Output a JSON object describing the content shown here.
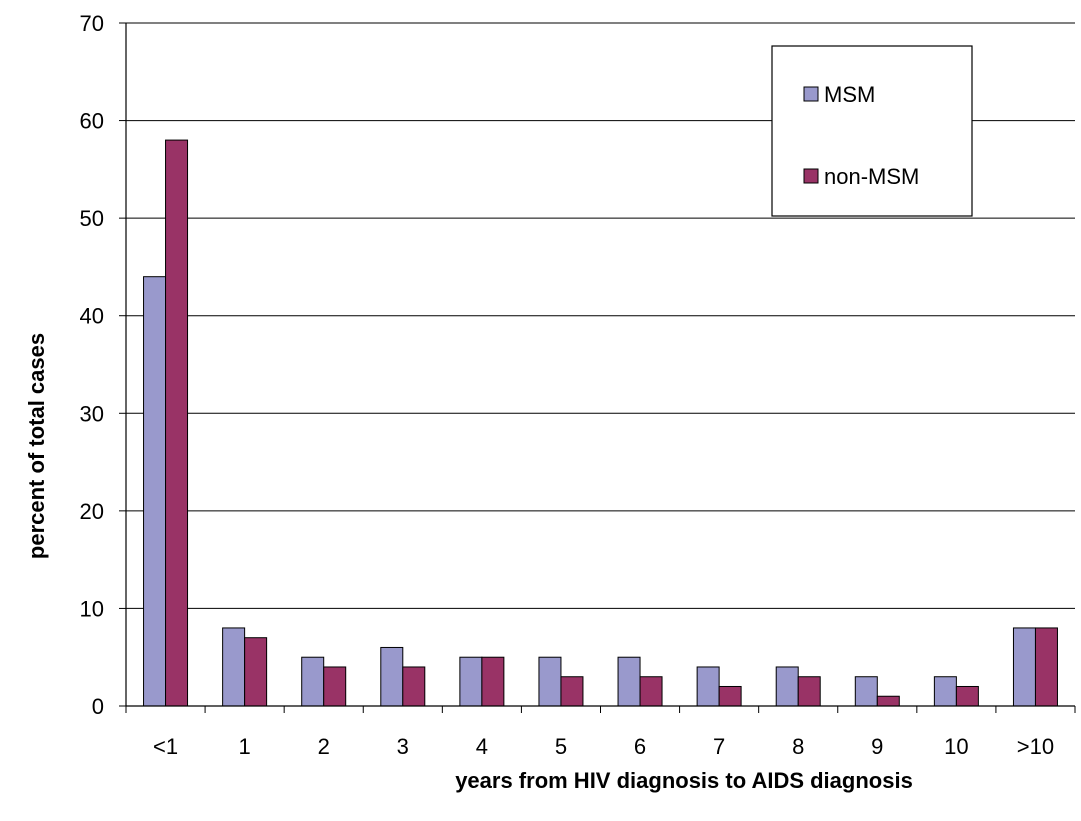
{
  "chart_data": {
    "type": "bar",
    "title": "",
    "xlabel": "years from HIV diagnosis to AIDS diagnosis",
    "ylabel": "percent of total cases",
    "categories": [
      "<1",
      "1",
      "2",
      "3",
      "4",
      "5",
      "6",
      "7",
      "8",
      "9",
      "10",
      ">10"
    ],
    "ylim": [
      0,
      70
    ],
    "yticks": [
      "0",
      "10",
      "20",
      "30",
      "40",
      "50",
      "60",
      "70"
    ],
    "grid": "horizontal",
    "legend_position": "top-right",
    "series": [
      {
        "name": "MSM",
        "color": "#9999cc",
        "values": [
          44,
          8,
          5,
          6,
          5,
          5,
          5,
          4,
          4,
          3,
          3,
          8
        ]
      },
      {
        "name": "non-MSM",
        "color": "#993366",
        "values": [
          58,
          7,
          4,
          4,
          5,
          3,
          3,
          2,
          3,
          1,
          2,
          8
        ]
      }
    ]
  }
}
